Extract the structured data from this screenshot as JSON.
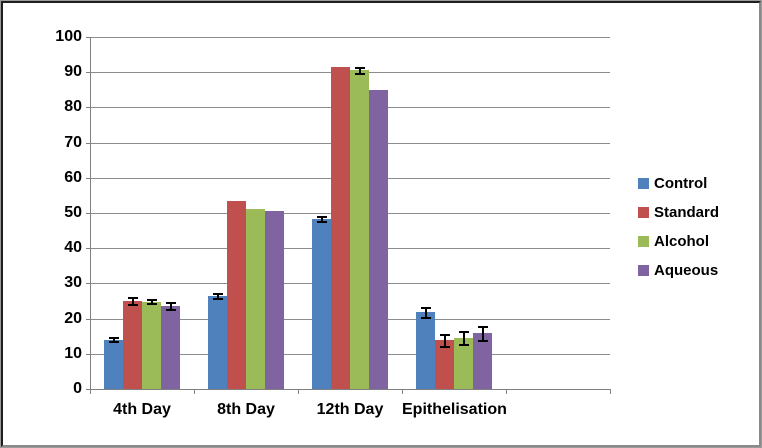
{
  "chart_data": {
    "type": "bar",
    "title": "",
    "xlabel": "",
    "ylabel": "",
    "categories": [
      "4th Day",
      "8th Day",
      "12th Day",
      "Epithelisation"
    ],
    "series": [
      {
        "name": "Control",
        "color": "#4F81BD",
        "values": [
          14.0,
          26.5,
          48.3,
          21.8
        ],
        "errors": [
          0.7,
          0.8,
          0.8,
          1.6
        ]
      },
      {
        "name": "Standard",
        "color": "#C0504D",
        "values": [
          25.0,
          53.3,
          91.5,
          13.8
        ],
        "errors": [
          1.2,
          0.0,
          0.0,
          1.9
        ]
      },
      {
        "name": "Alcohol",
        "color": "#9BBB59",
        "values": [
          24.8,
          51.2,
          90.5,
          14.5
        ],
        "errors": [
          0.7,
          0.0,
          1.0,
          2.0
        ]
      },
      {
        "name": "Aqueous",
        "color": "#8064A2",
        "values": [
          23.5,
          50.7,
          85.0,
          15.8
        ],
        "errors": [
          1.1,
          0.0,
          0.0,
          2.2
        ]
      }
    ],
    "ylim": [
      0,
      100
    ],
    "ytick_step": 10,
    "grid": true,
    "legend_position": "right",
    "error_bar_color": "#000000",
    "gridline_color": "#8c8c8c",
    "empty_trailing_category_slots": 1
  }
}
